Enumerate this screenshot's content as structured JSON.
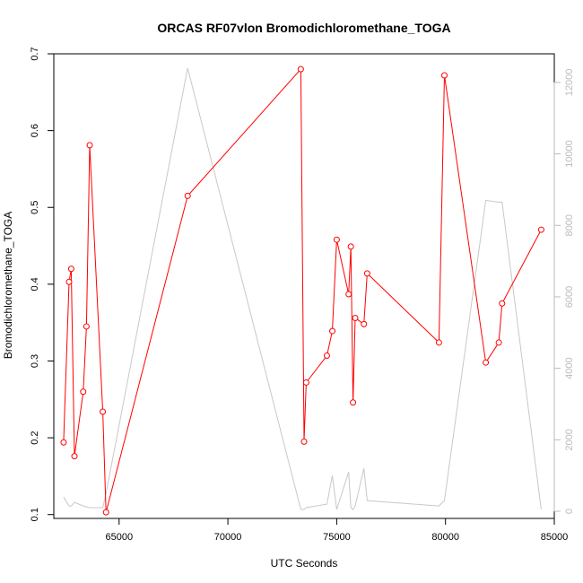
{
  "chart_data": {
    "type": "line",
    "title": "ORCAS RF07vlon Bromodichloromethane_TOGA",
    "xlabel": "UTC Seconds",
    "ylabel": "Bromodichloromethane_TOGA",
    "xlim": [
      62000,
      85000
    ],
    "ylim": [
      0.095,
      0.7
    ],
    "y2lim": [
      -200,
      12800
    ],
    "x_ticks": [
      65000,
      70000,
      75000,
      80000,
      85000
    ],
    "y_ticks": [
      0.1,
      0.2,
      0.3,
      0.4,
      0.5,
      0.6,
      0.7
    ],
    "y2_ticks": [
      0,
      2000,
      4000,
      6000,
      8000,
      10000,
      12000
    ],
    "grid": false,
    "series": [
      {
        "color": "#ff0000",
        "axis": "left",
        "style": "line+markers",
        "x": [
          62450,
          62700,
          62800,
          62950,
          63350,
          63500,
          63650,
          64250,
          64400,
          68150,
          73350,
          73500,
          73600,
          74550,
          74800,
          75000,
          75550,
          75650,
          75750,
          75850,
          76250,
          76400,
          79700,
          79950,
          81850,
          82450,
          82600,
          84400
        ],
        "values": [
          0.194,
          0.403,
          0.42,
          0.176,
          0.26,
          0.345,
          0.581,
          0.234,
          0.103,
          0.515,
          0.68,
          0.195,
          0.272,
          0.307,
          0.339,
          0.458,
          0.387,
          0.449,
          0.246,
          0.356,
          0.348,
          0.414,
          0.324,
          0.672,
          0.298,
          0.324,
          0.375,
          0.471
        ]
      },
      {
        "color": "#c8c8c8",
        "axis": "right",
        "style": "line",
        "x": [
          62450,
          62700,
          62800,
          62950,
          63350,
          63650,
          64250,
          64400,
          68150,
          73350,
          73500,
          73600,
          74550,
          74800,
          75000,
          75550,
          75650,
          75750,
          75850,
          76250,
          76400,
          79700,
          79950,
          81850,
          82450,
          82600,
          84400
        ],
        "values": [
          400,
          150,
          150,
          250,
          150,
          100,
          100,
          500,
          12400,
          50,
          50,
          100,
          200,
          1000,
          50,
          1100,
          100,
          50,
          150,
          1200,
          300,
          150,
          300,
          8700,
          8650,
          8650,
          50
        ]
      }
    ]
  }
}
